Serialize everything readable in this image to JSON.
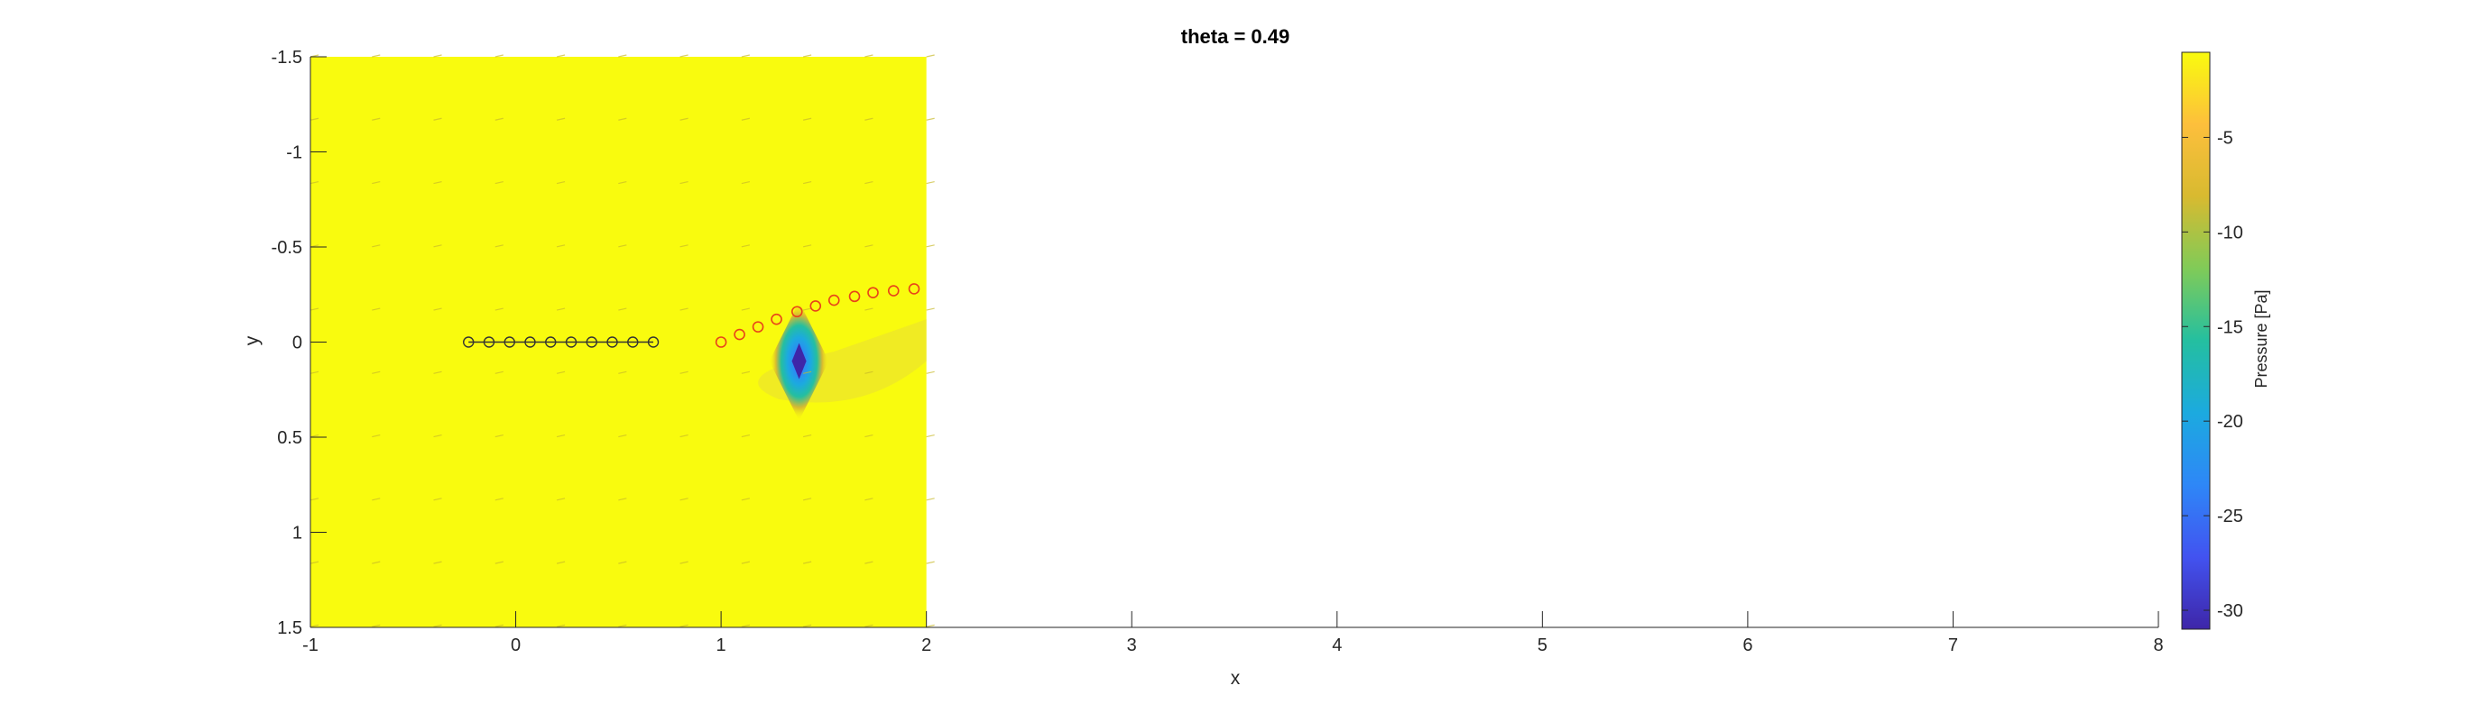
{
  "chart_data": {
    "type": "heatmap",
    "title": "theta = 0.49",
    "xlabel": "x",
    "ylabel": "y",
    "xlim": [
      -1,
      8
    ],
    "ylim": [
      -1.5,
      1.5
    ],
    "y_reversed": true,
    "field_x_range": [
      -1,
      2
    ],
    "x_ticks": [
      -1,
      0,
      1,
      2,
      3,
      4,
      5,
      6,
      7,
      8
    ],
    "y_ticks": [
      -1.5,
      -1,
      -0.5,
      0,
      0.5,
      1,
      1.5
    ],
    "y_tick_labels": [
      "-1.5",
      "-1",
      "-0.5",
      "0",
      "0.5",
      "1",
      "1.5"
    ],
    "colorbar": {
      "label": "Pressure [Pa]",
      "range": [
        -31,
        -0.5
      ],
      "ticks": [
        -5,
        -10,
        -15,
        -20,
        -25,
        -30
      ],
      "colormap": "parula",
      "colors": [
        "#3e26a8",
        "#4253f0",
        "#2e87f7",
        "#1caadf",
        "#24bfa0",
        "#80cb58",
        "#d8ba30",
        "#fdbf3c",
        "#f9fb0e"
      ]
    },
    "background_pressure": -0.5,
    "pressure_low": {
      "x": 1.38,
      "y": 0.1,
      "value": -31
    },
    "wake_points": {
      "x": [
        1.0,
        1.09,
        1.18,
        1.27,
        1.37,
        1.46,
        1.55,
        1.65,
        1.74,
        1.84,
        1.94
      ],
      "y": [
        0.0,
        -0.04,
        -0.08,
        -0.12,
        -0.16,
        -0.19,
        -0.22,
        -0.24,
        -0.26,
        -0.27,
        -0.28
      ],
      "color": "#e8431a"
    },
    "body_points": {
      "x": [
        -0.23,
        -0.13,
        -0.03,
        0.07,
        0.17,
        0.27,
        0.37,
        0.47,
        0.57,
        0.67
      ],
      "y": [
        0,
        0,
        0,
        0,
        0,
        0,
        0,
        0,
        0,
        0
      ],
      "color": "#333333"
    },
    "grid": false,
    "quiver": true
  }
}
